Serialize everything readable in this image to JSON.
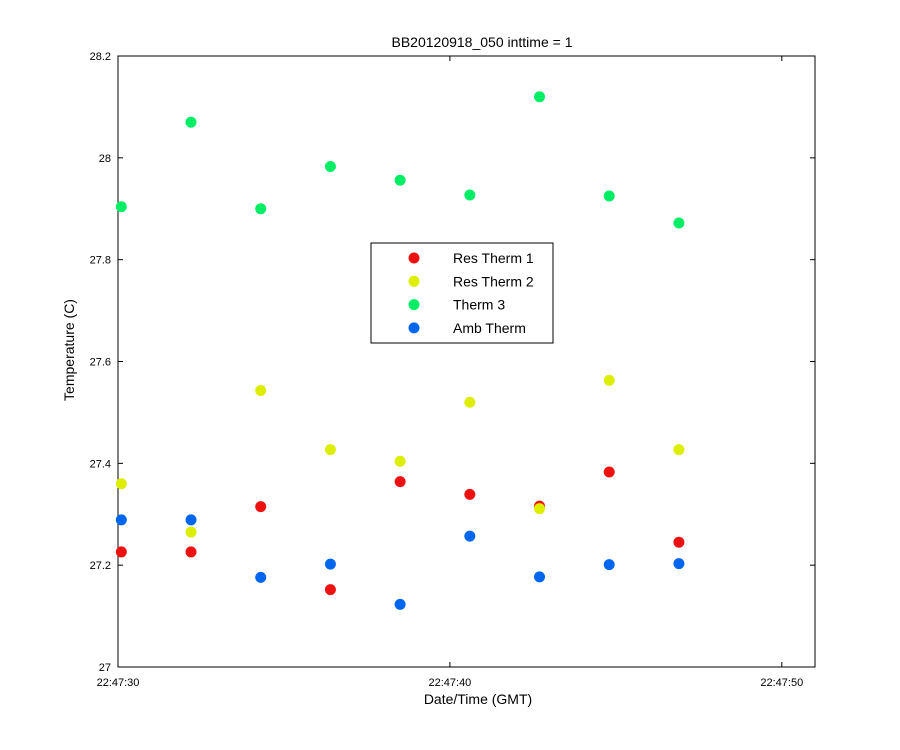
{
  "chart_data": {
    "type": "scatter",
    "title": "BB20120918_050 inttime = 1",
    "xlabel": "Date/Time (GMT)",
    "ylabel": "Temperature (C)",
    "xlim": [
      "22:47:30",
      "22:47:51"
    ],
    "ylim": [
      27,
      28.2
    ],
    "x_ticks": [
      "22:47:30",
      "22:47:40",
      "22:47:50"
    ],
    "y_ticks": [
      "27",
      "27.2",
      "27.4",
      "27.6",
      "27.8",
      "28",
      "28.2"
    ],
    "grid": false,
    "legend_position": "center",
    "x": [
      "22:47:30.1",
      "22:47:32.2",
      "22:47:34.3",
      "22:47:36.4",
      "22:47:38.5",
      "22:47:40.6",
      "22:47:42.7",
      "22:47:44.8",
      "22:47:46.9"
    ],
    "series": [
      {
        "name": "Res Therm 1",
        "color": "#ee1111",
        "values": [
          27.226,
          27.226,
          27.315,
          27.152,
          27.364,
          27.339,
          27.316,
          27.383,
          27.245
        ]
      },
      {
        "name": "Res Therm 2",
        "color": "#ddee00",
        "values": [
          27.36,
          27.265,
          27.543,
          27.427,
          27.404,
          27.52,
          27.311,
          27.563,
          27.427
        ]
      },
      {
        "name": "Therm 3",
        "color": "#00ee66",
        "values": [
          27.904,
          28.07,
          27.9,
          27.983,
          27.956,
          27.927,
          28.12,
          27.925,
          27.872
        ]
      },
      {
        "name": "Amb Therm",
        "color": "#0066ee",
        "values": [
          27.289,
          27.289,
          27.176,
          27.202,
          27.123,
          27.257,
          27.177,
          27.201,
          27.203
        ]
      }
    ]
  }
}
